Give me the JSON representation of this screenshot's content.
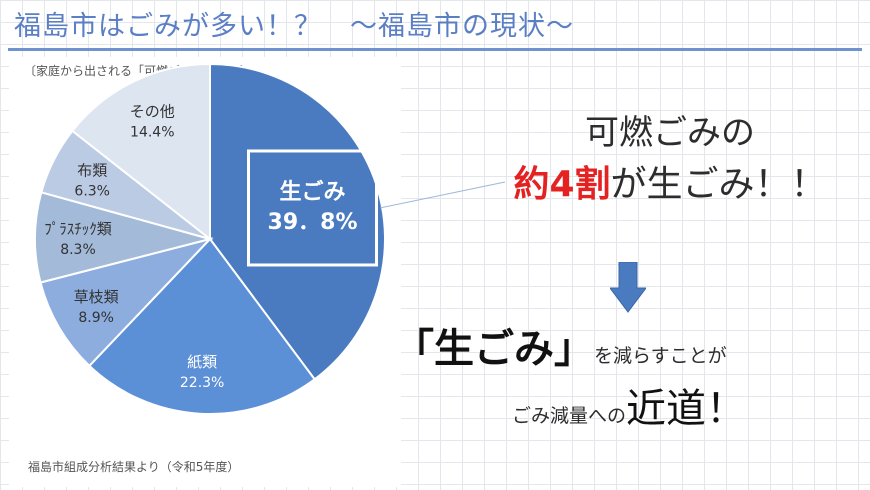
{
  "header": {
    "title": "福島市はごみが多い！？　～福島市の現状～"
  },
  "chart": {
    "caption": "〔家庭から出される「可燃ごみ」の内訳〕",
    "source": "福島市組成分析結果より（令和5年度）"
  },
  "chart_data": {
    "type": "pie",
    "title": "〔家庭から出される「可燃ごみ」の内訳〕",
    "slices": [
      {
        "name": "生ごみ",
        "value": 39.8,
        "label": "39．8%",
        "color": "#4a7bc0"
      },
      {
        "name": "紙類",
        "value": 22.3,
        "label": "22.3%",
        "color": "#5b8fd6"
      },
      {
        "name": "草枝類",
        "value": 8.9,
        "label": "8.9%",
        "color": "#8daddf"
      },
      {
        "name": "ﾌﾟﾗｽﾁｯｸ類",
        "value": 8.3,
        "label": "8.3%",
        "color": "#a3bad9"
      },
      {
        "name": "布類",
        "value": 6.3,
        "label": "6.3%",
        "color": "#bccbe4"
      },
      {
        "name": "その他",
        "value": 14.4,
        "label": "14.4%",
        "color": "#dde5f1"
      }
    ],
    "highlight": "生ごみ"
  },
  "callout": {
    "line1": "可燃ごみの",
    "line2_red": "約4割",
    "line2_rest": "が生ごみ！！",
    "line3_big": "「生ごみ」",
    "line3_small": "を減らすことが",
    "line4_small": "ごみ減量への",
    "line4_big": "近道",
    "line4_end": "！"
  },
  "colors": {
    "accent": "#5b7fc4",
    "red": "#e52222",
    "arrow": "#4a7bc0"
  },
  "icons": {
    "arrow": "down-arrow-icon"
  }
}
